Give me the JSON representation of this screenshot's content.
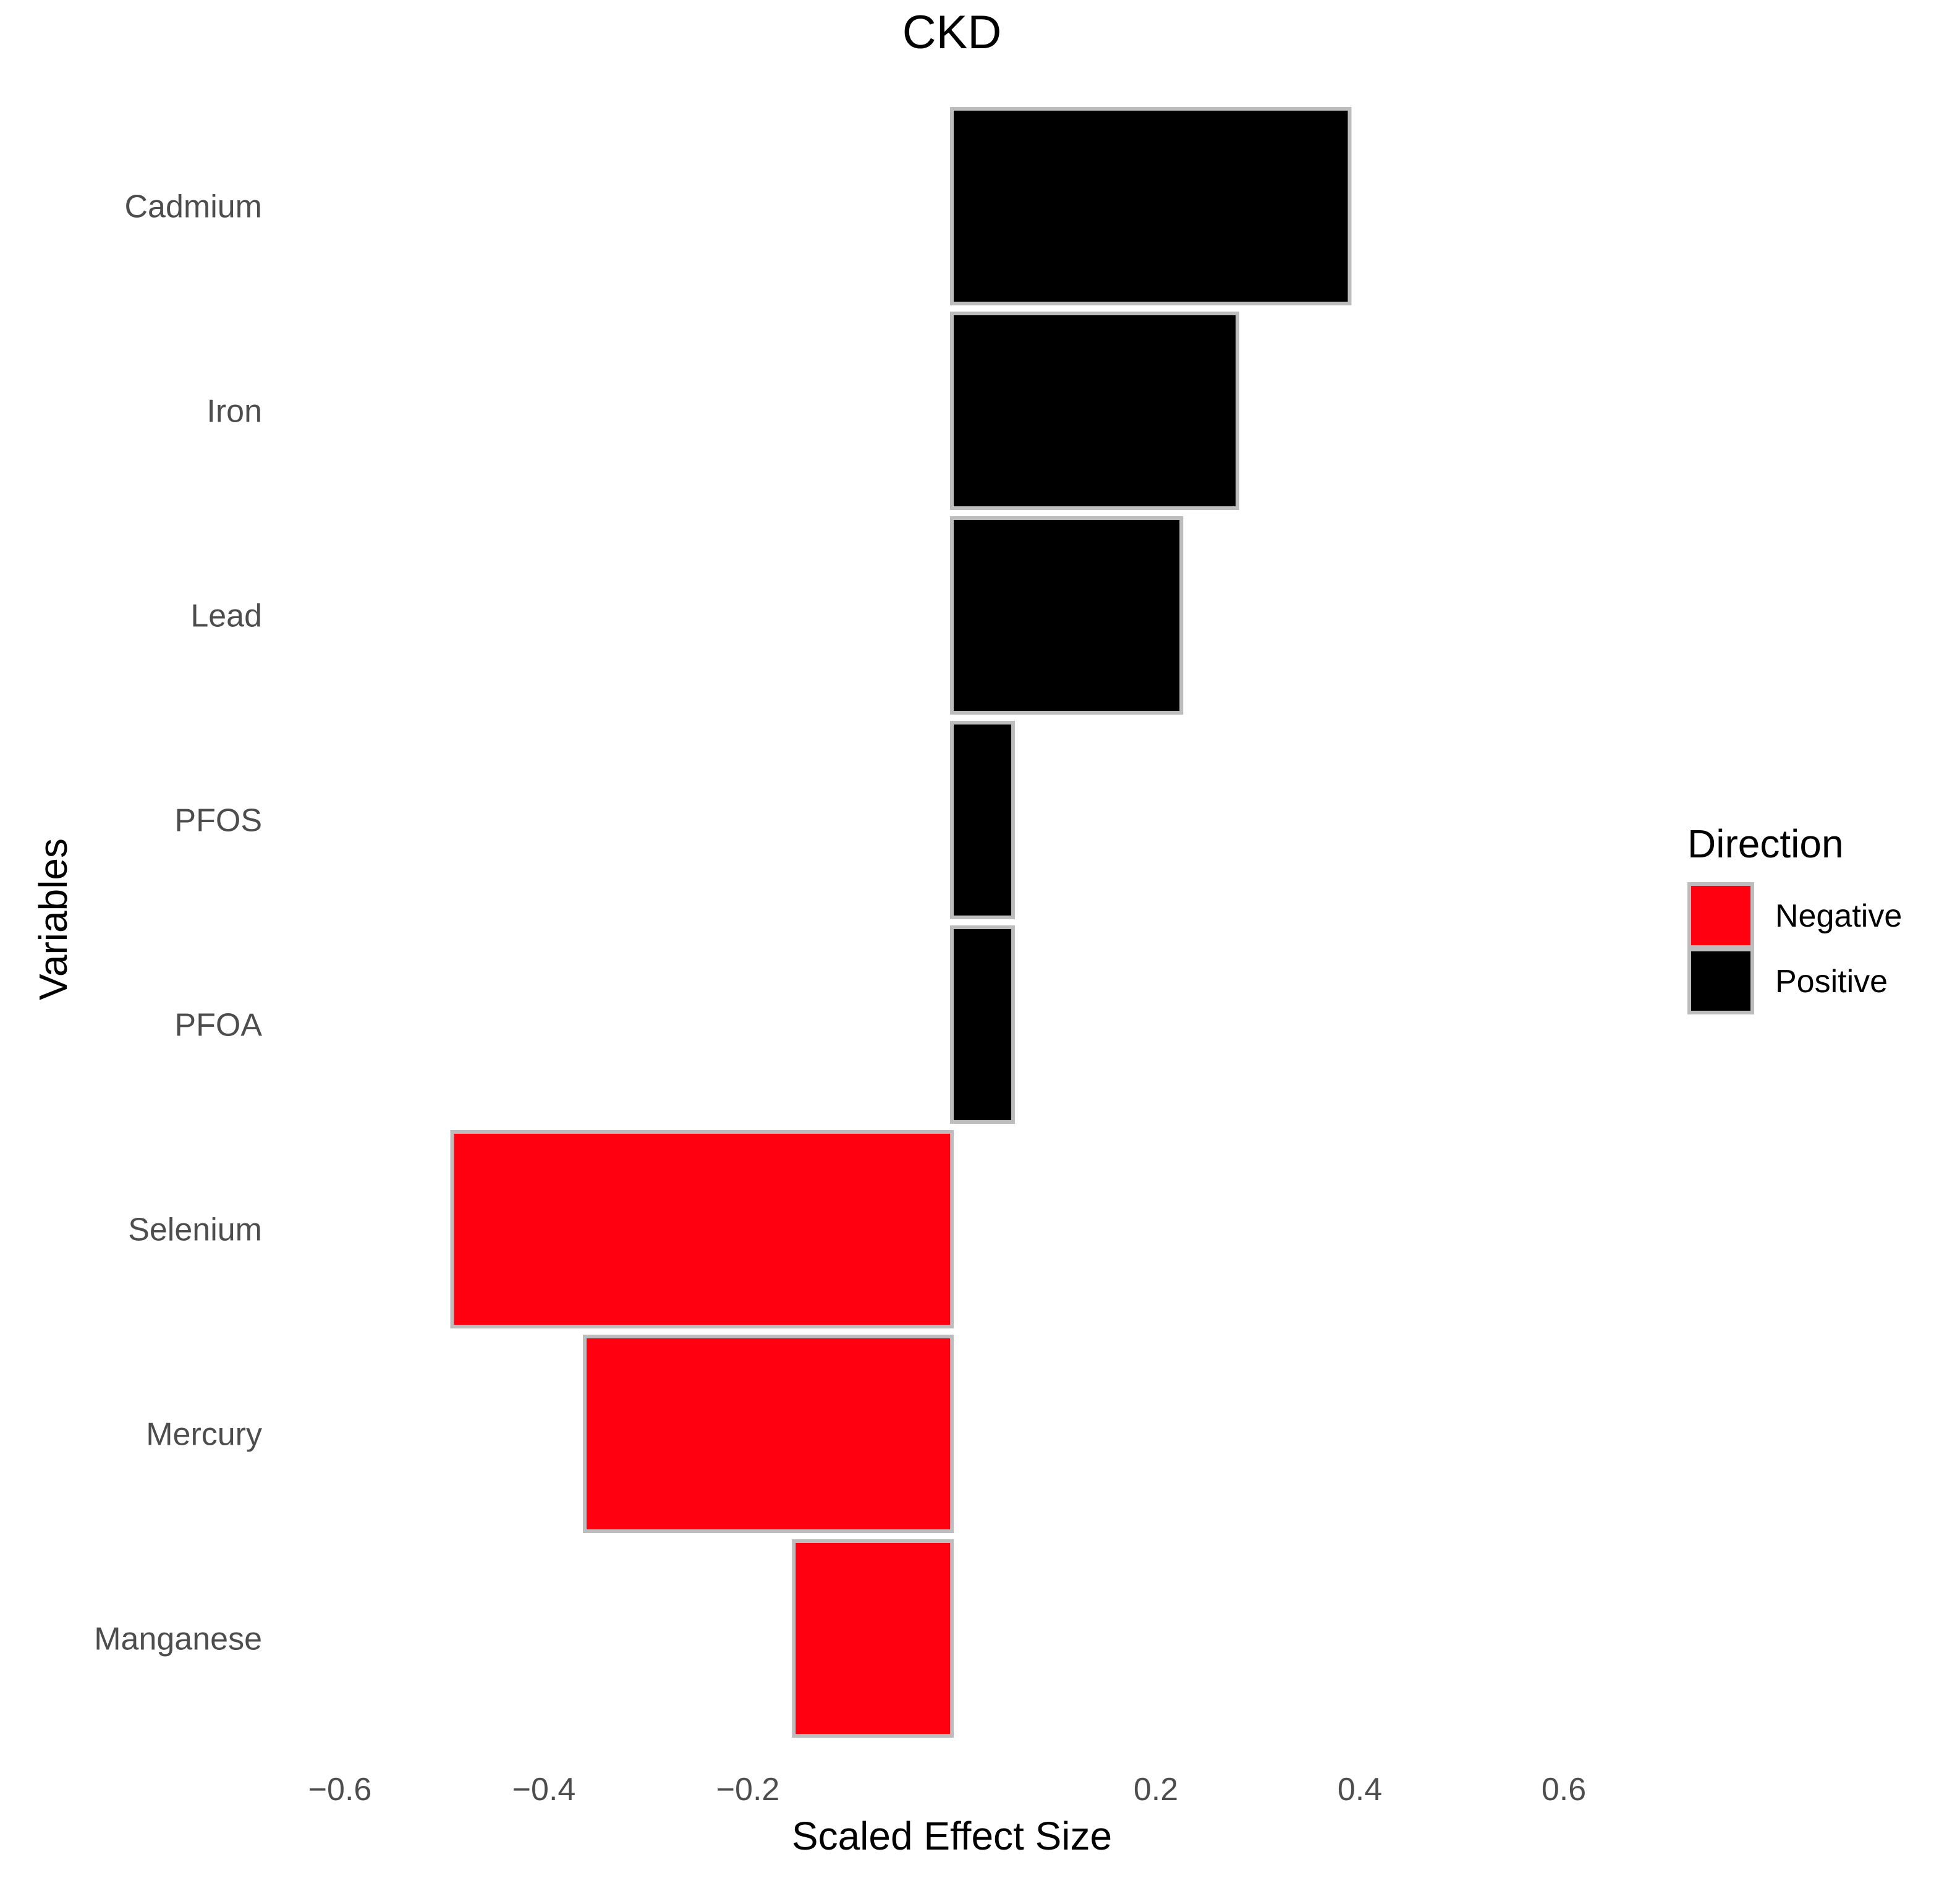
{
  "chart_data": {
    "type": "bar",
    "orientation": "horizontal",
    "title": "CKD",
    "xlabel": "Scaled Effect Size",
    "ylabel": "Variables",
    "xlim": [
      -0.72,
      0.86
    ],
    "xticks": [
      {
        "value": -0.6,
        "label": "−0.6"
      },
      {
        "value": -0.4,
        "label": "−0.4"
      },
      {
        "value": -0.2,
        "label": "−0.2"
      },
      {
        "value": 0.2,
        "label": "0.2"
      },
      {
        "value": 0.4,
        "label": "0.4"
      },
      {
        "value": 0.6,
        "label": "0.6"
      }
    ],
    "categories": [
      "Cadmium",
      "Iron",
      "Lead",
      "PFOS",
      "PFOA",
      "Selenium",
      "Mercury",
      "Manganese"
    ],
    "values": [
      0.39,
      0.28,
      0.225,
      0.06,
      0.06,
      -0.49,
      -0.36,
      -0.155
    ],
    "directions": [
      "Positive",
      "Positive",
      "Positive",
      "Positive",
      "Positive",
      "Negative",
      "Negative",
      "Negative"
    ],
    "grid": false,
    "legend": {
      "title": "Direction",
      "position": "right",
      "entries": [
        {
          "label": "Negative",
          "color": "#ff0011"
        },
        {
          "label": "Positive",
          "color": "#000000"
        }
      ]
    },
    "colors": {
      "Negative": "#ff0011",
      "Positive": "#000000",
      "bar_outline": "#bdbdbd"
    }
  }
}
